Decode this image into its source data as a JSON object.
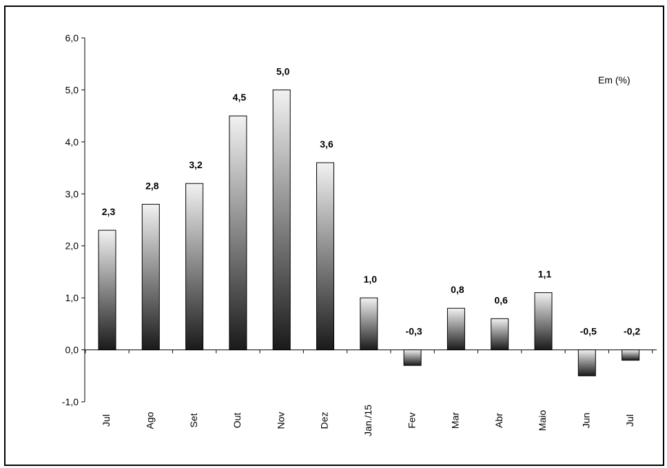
{
  "chart_data": {
    "type": "bar",
    "categories": [
      "Jul",
      "Ago",
      "Set",
      "Out",
      "Nov",
      "Dez",
      "Jan./15",
      "Fev",
      "Mar",
      "Abr",
      "Maio",
      "Jun",
      "Jul"
    ],
    "values": [
      2.3,
      2.8,
      3.2,
      4.5,
      5.0,
      3.6,
      1.0,
      -0.3,
      0.8,
      0.6,
      1.1,
      -0.5,
      -0.2
    ],
    "data_labels": [
      "2,3",
      "2,8",
      "3,2",
      "4,5",
      "5,0",
      "3,6",
      "1,0",
      "-0,3",
      "0,8",
      "0,6",
      "1,1",
      "-0,5",
      "-0,2"
    ],
    "unit_label": "Em (%)",
    "ylim": [
      -1.0,
      6.0
    ],
    "yticks": [
      -1.0,
      0.0,
      1.0,
      2.0,
      3.0,
      4.0,
      5.0,
      6.0
    ],
    "ytick_labels": [
      "-1,0",
      "0,0",
      "1,0",
      "2,0",
      "3,0",
      "4,0",
      "5,0",
      "6,0"
    ],
    "grid": false,
    "legend": "none",
    "bar_gradient": [
      "#f2f2f2",
      "#1a1a1a"
    ]
  }
}
